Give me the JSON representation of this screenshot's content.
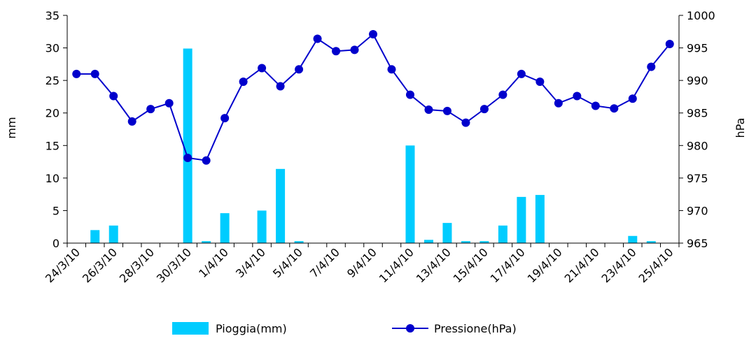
{
  "chart_data": {
    "type": "bar+line",
    "x": [
      "24/3/10",
      "25/3/10",
      "26/3/10",
      "27/3/10",
      "28/3/10",
      "29/3/10",
      "30/3/10",
      "31/3/10",
      "1/4/10",
      "2/4/10",
      "3/4/10",
      "4/4/10",
      "5/4/10",
      "6/4/10",
      "7/4/10",
      "8/4/10",
      "9/4/10",
      "10/4/10",
      "11/4/10",
      "12/4/10",
      "13/4/10",
      "14/4/10",
      "15/4/10",
      "16/4/10",
      "17/4/10",
      "18/4/10",
      "19/4/10",
      "20/4/10",
      "21/4/10",
      "22/4/10",
      "23/4/10",
      "24/4/10",
      "25/4/10"
    ],
    "x_tick_labels": [
      "24/3/10",
      "26/3/10",
      "28/3/10",
      "30/3/10",
      "1/4/10",
      "3/4/10",
      "5/4/10",
      "7/4/10",
      "9/4/10",
      "11/4/10",
      "13/4/10",
      "15/4/10",
      "17/4/10",
      "19/4/10",
      "21/4/10",
      "23/4/10",
      "25/4/10"
    ],
    "series": [
      {
        "name": "Pioggia(mm)",
        "type": "bar",
        "axis": "left",
        "color": "#00CCFF",
        "values": [
          0,
          2.0,
          2.7,
          0,
          0,
          0,
          29.9,
          0.3,
          4.6,
          0,
          5.0,
          11.4,
          0.3,
          0,
          0,
          0,
          0,
          0,
          15.0,
          0.5,
          3.1,
          0.3,
          0.3,
          2.7,
          7.1,
          7.4,
          0,
          0,
          0,
          0,
          1.1,
          0.3,
          0
        ]
      },
      {
        "name": "Pressione(hPa)",
        "type": "line",
        "axis": "right",
        "color": "#0000CC",
        "values": [
          991,
          991,
          987.6,
          983.7,
          985.6,
          986.5,
          978.1,
          977.7,
          984.2,
          989.8,
          991.9,
          989.1,
          991.7,
          996.4,
          994.5,
          994.7,
          997.1,
          991.7,
          987.8,
          985.5,
          985.3,
          983.5,
          985.6,
          987.8,
          991,
          989.8,
          986.5,
          987.6,
          986.1,
          985.7,
          987.2,
          992.1,
          995.6
        ]
      }
    ],
    "ylabel_left": "mm",
    "ylabel_right": "hPa",
    "ylim_left": [
      0,
      35
    ],
    "ylim_right": [
      965,
      1000
    ],
    "yticks_left": [
      "0",
      "5",
      "10",
      "15",
      "20",
      "25",
      "30",
      "35"
    ],
    "yticks_right": [
      "965",
      "970",
      "975",
      "980",
      "985",
      "990",
      "995",
      "1000"
    ],
    "grid": false,
    "legend_position": "bottom"
  }
}
